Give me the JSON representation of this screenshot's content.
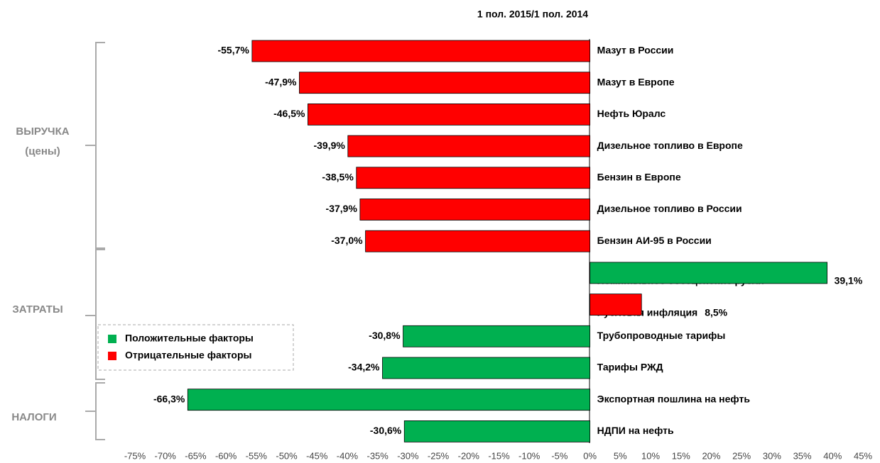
{
  "chart_data": {
    "type": "bar",
    "orientation": "horizontal",
    "title": "1 пол. 2015/1 пол. 2014",
    "categories": [
      "Мазут в России",
      "Мазут в Европе",
      "Нефть Юралс",
      "Дизельное топливо в Европе",
      "Бензин в Европе",
      "Дизельное топливо в России",
      "Бензин АИ-95 в России",
      "Номинальное обесценение рубля",
      "Рублевая инфляция",
      "Трубопроводные тарифы",
      "Тарифы РЖД",
      "Экспортная пошлина на нефть",
      "НДПИ на нефть"
    ],
    "series": [
      {
        "name": "Положительные факторы",
        "color": "#00b050",
        "values": [
          null,
          null,
          null,
          null,
          null,
          null,
          null,
          39.1,
          null,
          -30.8,
          -34.2,
          -66.3,
          -30.6
        ],
        "value_labels": [
          null,
          null,
          null,
          null,
          null,
          null,
          null,
          "39,1%",
          null,
          "-30,8%",
          "-34,2%",
          "-66,3%",
          "-30,6%"
        ]
      },
      {
        "name": "Отрицательные факторы",
        "color": "#ff0000",
        "values": [
          -55.7,
          -47.9,
          -46.5,
          -39.9,
          -38.5,
          -37.9,
          -37.0,
          null,
          8.5,
          null,
          null,
          null,
          null
        ],
        "value_labels": [
          "-55,7%",
          "-47,9%",
          "-46,5%",
          "-39,9%",
          "-38,5%",
          "-37,9%",
          "-37,0%",
          null,
          "8,5%",
          null,
          null,
          null,
          null
        ]
      }
    ],
    "groups": [
      {
        "label": "ВЫРУЧКА",
        "sublabel": "(цены)"
      },
      {
        "label": "ЗАТРАТЫ"
      },
      {
        "label": "НАЛОГИ"
      }
    ],
    "xlim": [
      -75,
      45
    ],
    "xticks": [
      {
        "value": -75,
        "label": "-75%"
      },
      {
        "value": -70,
        "label": "-70%"
      },
      {
        "value": -65,
        "label": "-65%"
      },
      {
        "value": -60,
        "label": "-60%"
      },
      {
        "value": -55,
        "label": "-55%"
      },
      {
        "value": -50,
        "label": "-50%"
      },
      {
        "value": -45,
        "label": "-45%"
      },
      {
        "value": -40,
        "label": "-40%"
      },
      {
        "value": -35,
        "label": "-35%"
      },
      {
        "value": -30,
        "label": "-30%"
      },
      {
        "value": -25,
        "label": "-25%"
      },
      {
        "value": -20,
        "label": "-20%"
      },
      {
        "value": -15,
        "label": "-15%"
      },
      {
        "value": -10,
        "label": "-10%"
      },
      {
        "value": -5,
        "label": "-5%"
      },
      {
        "value": 0,
        "label": "0%"
      },
      {
        "value": 5,
        "label": "5%"
      },
      {
        "value": 10,
        "label": "10%"
      },
      {
        "value": 15,
        "label": "15%"
      },
      {
        "value": 20,
        "label": "20%"
      },
      {
        "value": 25,
        "label": "25%"
      },
      {
        "value": 30,
        "label": "30%"
      },
      {
        "value": 35,
        "label": "35%"
      },
      {
        "value": 40,
        "label": "40%"
      },
      {
        "value": 45,
        "label": "45%"
      }
    ],
    "grid": false
  }
}
